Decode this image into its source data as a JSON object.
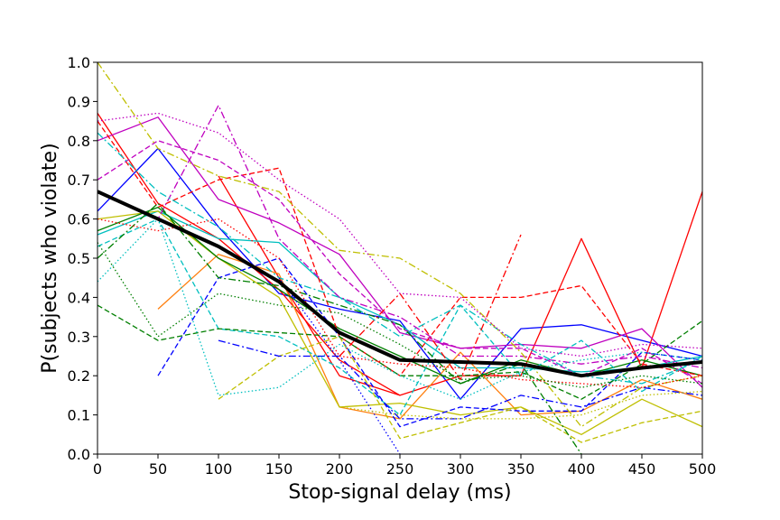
{
  "chart_data": {
    "type": "line",
    "title": "",
    "xlabel": "Stop-signal delay (ms)",
    "ylabel": "P(subjects who violate)",
    "xlim": [
      0,
      500
    ],
    "ylim": [
      0.0,
      1.0
    ],
    "xticks": [
      "0",
      "50",
      "100",
      "150",
      "200",
      "250",
      "300",
      "350",
      "400",
      "450",
      "500"
    ],
    "yticks": [
      "0.0",
      "0.1",
      "0.2",
      "0.3",
      "0.4",
      "0.5",
      "0.6",
      "0.7",
      "0.8",
      "0.9",
      "1.0"
    ],
    "grid": false,
    "legend": "none",
    "series": [
      {
        "color": "#000000",
        "style": "solid",
        "mean": true,
        "x": [
          0,
          50,
          100,
          150,
          200,
          250,
          300,
          350,
          400,
          450,
          500
        ],
        "y": [
          0.67,
          0.6,
          0.53,
          0.44,
          0.31,
          0.24,
          0.235,
          0.23,
          0.2,
          0.22,
          0.235
        ]
      },
      {
        "color": "#0000ff",
        "style": "solid",
        "x": [
          0,
          50,
          100,
          150,
          200,
          250,
          300,
          350,
          400,
          450,
          500
        ],
        "y": [
          0.62,
          0.78,
          0.58,
          0.41,
          0.37,
          0.34,
          0.14,
          0.32,
          0.33,
          0.29,
          0.25
        ]
      },
      {
        "color": "#ff0000",
        "style": "solid",
        "x": [
          0,
          50,
          100,
          150,
          200,
          250,
          300,
          350,
          400,
          450,
          500
        ],
        "y": [
          0.87,
          0.64,
          0.55,
          0.42,
          0.24,
          0.15,
          0.2,
          0.2,
          0.55,
          0.22,
          0.67
        ]
      },
      {
        "color": "#ff0000",
        "style": "solid",
        "x": [
          100,
          150,
          200,
          250
        ],
        "y": [
          0.71,
          0.45,
          0.2,
          0.15
        ]
      },
      {
        "color": "#bf00bf",
        "style": "solid",
        "x": [
          0,
          50,
          100,
          150,
          200,
          250,
          300,
          350,
          400,
          450,
          500
        ],
        "y": [
          0.8,
          0.86,
          0.65,
          0.59,
          0.51,
          0.31,
          0.27,
          0.28,
          0.27,
          0.32,
          0.17
        ]
      },
      {
        "color": "#00bfbf",
        "style": "solid",
        "x": [
          0,
          50,
          100,
          150,
          200,
          250,
          300,
          350,
          400,
          450,
          500
        ],
        "y": [
          0.56,
          0.62,
          0.55,
          0.54,
          0.4,
          0.33,
          0.22,
          0.22,
          0.21,
          0.22,
          0.25
        ]
      },
      {
        "color": "#ff7f0e",
        "style": "solid",
        "x": [
          50,
          100,
          150,
          200,
          250,
          300,
          350,
          400,
          450,
          500
        ],
        "y": [
          0.37,
          0.51,
          0.46,
          0.12,
          0.09,
          0.26,
          0.1,
          0.11,
          0.19,
          0.14
        ]
      },
      {
        "color": "#bfbf00",
        "style": "solid",
        "x": [
          0,
          50,
          100,
          150,
          200,
          250,
          300,
          350,
          400,
          450,
          500
        ],
        "y": [
          0.6,
          0.62,
          0.5,
          0.4,
          0.12,
          0.13,
          0.1,
          0.12,
          0.05,
          0.14,
          0.07
        ]
      },
      {
        "color": "#007f00",
        "style": "solid",
        "x": [
          0,
          50,
          100,
          150,
          200,
          250,
          300,
          350,
          400,
          450,
          500
        ],
        "y": [
          0.57,
          0.63,
          0.5,
          0.42,
          0.32,
          0.25,
          0.18,
          0.24,
          0.2,
          0.24,
          0.2
        ]
      },
      {
        "color": "#0000ff",
        "style": "dashed",
        "x": [
          50,
          100,
          150,
          200,
          250,
          300,
          350,
          400,
          450,
          500
        ],
        "y": [
          0.2,
          0.45,
          0.5,
          0.3,
          0.07,
          0.12,
          0.11,
          0.11,
          0.26,
          0.24
        ]
      },
      {
        "color": "#ff0000",
        "style": "dashed",
        "x": [
          0,
          50,
          100,
          150,
          200,
          250,
          300,
          350,
          400,
          450,
          500
        ],
        "y": [
          0.85,
          0.63,
          0.7,
          0.73,
          0.3,
          0.2,
          0.4,
          0.4,
          0.43,
          0.23,
          0.2
        ]
      },
      {
        "color": "#bf00bf",
        "style": "dashed",
        "x": [
          0,
          50,
          100,
          150,
          200,
          250,
          300,
          350,
          400,
          450,
          500
        ],
        "y": [
          0.7,
          0.8,
          0.75,
          0.65,
          0.46,
          0.32,
          0.27,
          0.27,
          0.2,
          0.27,
          0.18
        ]
      },
      {
        "color": "#00bfbf",
        "style": "dashed",
        "x": [
          0,
          50,
          100,
          150,
          200,
          250,
          300,
          350,
          400,
          450,
          500
        ],
        "y": [
          0.53,
          0.6,
          0.32,
          0.3,
          0.22,
          0.1,
          0.38,
          0.2,
          0.29,
          0.16,
          0.25
        ]
      },
      {
        "color": "#bfbf00",
        "style": "dashed",
        "x": [
          100,
          150,
          200,
          250,
          300,
          350,
          400,
          450,
          500
        ],
        "y": [
          0.14,
          0.25,
          0.3,
          0.04,
          0.08,
          0.12,
          0.03,
          0.08,
          0.11
        ]
      },
      {
        "color": "#007f00",
        "style": "dashed",
        "x": [
          0,
          50,
          100,
          150,
          200,
          250,
          300,
          350,
          400,
          450,
          500
        ],
        "y": [
          0.38,
          0.29,
          0.32,
          0.31,
          0.3,
          0.2,
          0.2,
          0.21,
          0.14,
          0.23,
          0.34
        ]
      },
      {
        "color": "#0000ff",
        "style": "dashdot",
        "x": [
          100,
          150,
          200,
          250,
          300,
          350,
          400,
          450,
          500
        ],
        "y": [
          0.29,
          0.25,
          0.25,
          0.09,
          0.09,
          0.15,
          0.12,
          0.17,
          0.15
        ]
      },
      {
        "color": "#ff0000",
        "style": "dashdot",
        "x": [
          200,
          250,
          300,
          350
        ],
        "y": [
          0.25,
          0.41,
          0.19,
          0.56
        ]
      },
      {
        "color": "#bf00bf",
        "style": "dashdot",
        "x": [
          0,
          50,
          100,
          150,
          200,
          250,
          300,
          350,
          400,
          450,
          500
        ],
        "y": [
          0.67,
          0.6,
          0.89,
          0.55,
          0.4,
          0.35,
          0.25,
          0.25,
          0.23,
          0.25,
          0.22
        ]
      },
      {
        "color": "#00bfbf",
        "style": "dashdot",
        "x": [
          0,
          50,
          100,
          150,
          200,
          250,
          300,
          350,
          400,
          450,
          500
        ],
        "y": [
          0.82,
          0.67,
          0.58,
          0.45,
          0.4,
          0.3,
          0.38,
          0.28,
          0.2,
          0.18,
          0.24
        ]
      },
      {
        "color": "#bfbf00",
        "style": "dashdot",
        "x": [
          0,
          50,
          100,
          150,
          200,
          250,
          300,
          350,
          400,
          450,
          500
        ],
        "y": [
          1.0,
          0.78,
          0.71,
          0.67,
          0.52,
          0.5,
          0.41,
          0.26,
          0.07,
          0.17,
          0.2
        ]
      },
      {
        "color": "#007f00",
        "style": "dashdot",
        "x": [
          0,
          50,
          100,
          150,
          200,
          250,
          300,
          350,
          400
        ],
        "y": [
          0.5,
          0.64,
          0.45,
          0.43,
          0.38,
          0.33,
          0.18,
          0.23,
          0.0
        ]
      },
      {
        "color": "#0000ff",
        "style": "dotted",
        "x": [
          150,
          200,
          250
        ],
        "y": [
          0.45,
          0.24,
          0.0
        ]
      },
      {
        "color": "#ff0000",
        "style": "dotted",
        "x": [
          0,
          50,
          100,
          150,
          200,
          250,
          300,
          350,
          400,
          450,
          500
        ],
        "y": [
          0.6,
          0.57,
          0.6,
          0.5,
          0.25,
          0.23,
          0.22,
          0.19,
          0.18,
          0.17,
          0.2
        ]
      },
      {
        "color": "#bf00bf",
        "style": "dotted",
        "x": [
          0,
          50,
          100,
          150,
          200,
          250,
          300,
          350,
          400,
          450,
          500
        ],
        "y": [
          0.85,
          0.87,
          0.82,
          0.7,
          0.6,
          0.41,
          0.4,
          0.27,
          0.25,
          0.28,
          0.27
        ]
      },
      {
        "color": "#00bfbf",
        "style": "dotted",
        "x": [
          0,
          50,
          100,
          150,
          200,
          250,
          300,
          350,
          400,
          450,
          500
        ],
        "y": [
          0.44,
          0.6,
          0.15,
          0.17,
          0.28,
          0.2,
          0.14,
          0.21,
          0.24,
          0.26,
          0.24
        ]
      },
      {
        "color": "#bfbf00",
        "style": "dotted",
        "x": [
          200,
          250,
          300,
          350,
          400,
          450,
          500
        ],
        "y": [
          0.12,
          0.1,
          0.09,
          0.09,
          0.1,
          0.15,
          0.16
        ]
      },
      {
        "color": "#007f00",
        "style": "dotted",
        "x": [
          0,
          50,
          100,
          150,
          200,
          250,
          300,
          350,
          400,
          450,
          500
        ],
        "y": [
          0.54,
          0.3,
          0.41,
          0.38,
          0.36,
          0.28,
          0.19,
          0.2,
          0.17,
          0.2,
          0.18
        ]
      }
    ]
  }
}
